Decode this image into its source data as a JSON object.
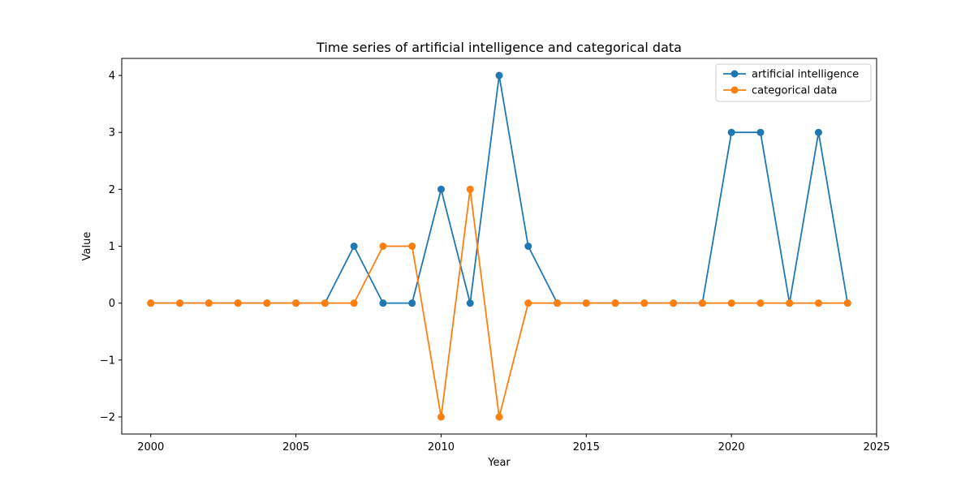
{
  "chart_data": {
    "type": "line",
    "title": "Time series of artificial intelligence and categorical data",
    "xlabel": "Year",
    "ylabel": "Value",
    "xlim": [
      1999,
      2025
    ],
    "ylim": [
      -2.3,
      4.3
    ],
    "xticks": [
      2000,
      2005,
      2010,
      2015,
      2020,
      2025
    ],
    "xtick_labels": [
      "2000",
      "2005",
      "2010",
      "2015",
      "2020",
      "2025"
    ],
    "yticks": [
      -2,
      -1,
      0,
      1,
      2,
      3,
      4
    ],
    "ytick_labels": [
      "−2",
      "−1",
      "0",
      "1",
      "2",
      "3",
      "4"
    ],
    "grid": false,
    "legend_position": "top-right",
    "x": [
      2000,
      2001,
      2002,
      2003,
      2004,
      2005,
      2006,
      2007,
      2008,
      2009,
      2010,
      2011,
      2012,
      2013,
      2014,
      2015,
      2016,
      2017,
      2018,
      2019,
      2020,
      2021,
      2022,
      2023,
      2024
    ],
    "series": [
      {
        "name": "artificial intelligence",
        "color": "#1f77b4",
        "marker": "circle",
        "values": [
          0,
          0,
          0,
          0,
          0,
          0,
          0,
          1,
          0,
          0,
          2,
          0,
          4,
          1,
          0,
          0,
          0,
          0,
          0,
          0,
          3,
          3,
          0,
          3,
          0
        ]
      },
      {
        "name": "categorical data",
        "color": "#ff7f0e",
        "marker": "circle",
        "values": [
          0,
          0,
          0,
          0,
          0,
          0,
          0,
          0,
          1,
          1,
          -2,
          2,
          -2,
          0,
          0,
          0,
          0,
          0,
          0,
          0,
          0,
          0,
          0,
          0,
          0
        ]
      }
    ]
  }
}
